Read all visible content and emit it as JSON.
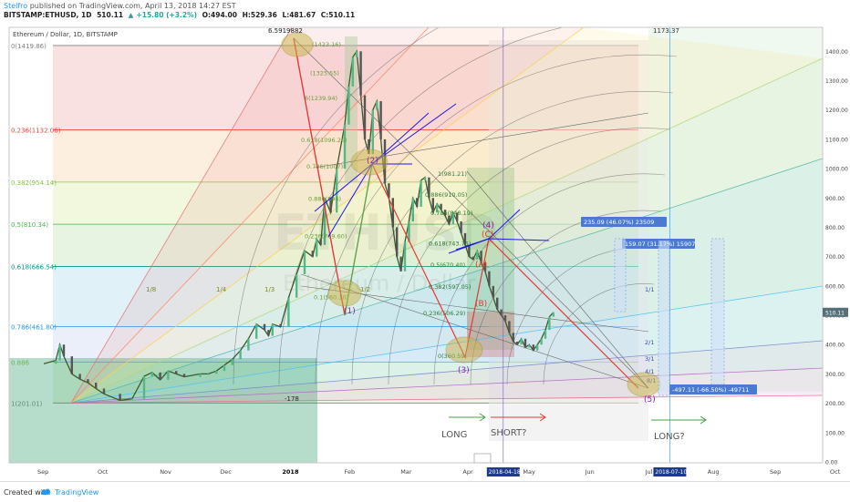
{
  "header": {
    "user": "Stelfro",
    "published": " published on TradingView.com, April 13, 2018 14:27 EST",
    "symbol": "BITSTAMP:ETHUSD, 1D",
    "last": "510.11",
    "change": "+15.80 (+3.2%)",
    "o": "O:494.00",
    "h": "H:529.36",
    "l": "L:481.67",
    "c": "C:510.11"
  },
  "chart_title": "Ethereum / Dollar, 1D, BITSTAMP",
  "watermark": {
    "big": "ETHUSD",
    "small": "Ethereum / Dollar"
  },
  "footer": {
    "created": "Created with",
    "brand": "TradingView"
  },
  "chart_data": {
    "type": "candlestick",
    "x_tick_labels": [
      "Sep",
      "Oct",
      "Nov",
      "Dec",
      "2018",
      "Feb",
      "Mar",
      "Apr",
      "May",
      "Jun",
      "Jul",
      "Aug",
      "Sep",
      "Oct"
    ],
    "y_tick_labels": [
      "1400.00",
      "1300.00",
      "1200.00",
      "1100.00",
      "1000.00",
      "900.00",
      "800.00",
      "700.00",
      "600.00",
      "500.00",
      "400.00",
      "300.00",
      "200.00",
      "100.00",
      "0.00"
    ],
    "ylim": [
      0,
      1460
    ],
    "last_price_label": "510.11",
    "date_marks": [
      {
        "label": "2018-04-18",
        "date": "2018-04-18"
      },
      {
        "label": "2018-07-10",
        "date": "2018-07-10"
      }
    ],
    "top_price_label": "1173.37",
    "price_series": [
      [
        0,
        335
      ],
      [
        6,
        346
      ],
      [
        8,
        400
      ],
      [
        10,
        360
      ],
      [
        14,
        300
      ],
      [
        18,
        282
      ],
      [
        22,
        270
      ],
      [
        26,
        250
      ],
      [
        30,
        232
      ],
      [
        38,
        210
      ],
      [
        44,
        215
      ],
      [
        50,
        292
      ],
      [
        54,
        305
      ],
      [
        58,
        280
      ],
      [
        62,
        310
      ],
      [
        66,
        300
      ],
      [
        70,
        290
      ],
      [
        78,
        300
      ],
      [
        82,
        300
      ],
      [
        86,
        310
      ],
      [
        90,
        330
      ],
      [
        94,
        350
      ],
      [
        98,
        380
      ],
      [
        102,
        420
      ],
      [
        106,
        470
      ],
      [
        110,
        450
      ],
      [
        112,
        430
      ],
      [
        114,
        470
      ],
      [
        118,
        460
      ],
      [
        122,
        560
      ],
      [
        126,
        640
      ],
      [
        130,
        720
      ],
      [
        134,
        700
      ],
      [
        136,
        760
      ],
      [
        138,
        740
      ],
      [
        140,
        900
      ],
      [
        143,
        850
      ],
      [
        146,
        1000
      ],
      [
        150,
        1150
      ],
      [
        152,
        1280
      ],
      [
        154,
        1380
      ],
      [
        156,
        1400
      ],
      [
        158,
        1250
      ],
      [
        160,
        1100
      ],
      [
        162,
        1050
      ],
      [
        164,
        1200
      ],
      [
        166,
        1230
      ],
      [
        168,
        1100
      ],
      [
        170,
        950
      ],
      [
        172,
        900
      ],
      [
        174,
        800
      ],
      [
        176,
        700
      ],
      [
        178,
        650
      ],
      [
        180,
        750
      ],
      [
        182,
        820
      ],
      [
        184,
        900
      ],
      [
        186,
        870
      ],
      [
        188,
        960
      ],
      [
        190,
        970
      ],
      [
        192,
        900
      ],
      [
        194,
        850
      ],
      [
        196,
        880
      ],
      [
        198,
        860
      ],
      [
        200,
        840
      ],
      [
        202,
        810
      ],
      [
        204,
        850
      ],
      [
        206,
        820
      ],
      [
        208,
        780
      ],
      [
        210,
        740
      ],
      [
        212,
        700
      ],
      [
        214,
        690
      ],
      [
        216,
        720
      ],
      [
        218,
        680
      ],
      [
        220,
        650
      ],
      [
        222,
        600
      ],
      [
        224,
        560
      ],
      [
        226,
        520
      ],
      [
        228,
        500
      ],
      [
        230,
        480
      ],
      [
        232,
        440
      ],
      [
        234,
        410
      ],
      [
        236,
        400
      ],
      [
        238,
        420
      ],
      [
        240,
        390
      ],
      [
        242,
        400
      ],
      [
        244,
        380
      ],
      [
        246,
        400
      ],
      [
        248,
        420
      ],
      [
        250,
        450
      ],
      [
        252,
        495
      ],
      [
        254,
        510
      ]
    ],
    "fib_retracement": [
      {
        "label": "0(1419.86)",
        "price": 1419.86,
        "color": "#808080"
      },
      {
        "label": "0.236(1132.06)",
        "price": 1132.06,
        "color": "#f44336"
      },
      {
        "label": "0.382(954.14)",
        "price": 954.14,
        "color": "#8bc34a"
      },
      {
        "label": "0.5(810.34)",
        "price": 810.34,
        "color": "#4caf50"
      },
      {
        "label": "0.618(666.54)",
        "price": 666.54,
        "color": "#009688"
      },
      {
        "label": "0.786(461.80)",
        "price": 461.8,
        "color": "#2196f3"
      },
      {
        "label": "0.886",
        "price": 340,
        "color": "#8bc34a"
      },
      {
        "label": "1(201.01)",
        "price": 201.01,
        "color": "#808080"
      }
    ],
    "inner_fib_labels": [
      {
        "label": "(1423.16)",
        "price": 1423.16
      },
      {
        "label": "(1325.55)",
        "price": 1325.55
      },
      {
        "label": "6(1239.94)",
        "price": 1239.94
      },
      {
        "label": "0.618(1096.26)",
        "price": 1096.26
      },
      {
        "label": "0.786(1007)",
        "price": 1007
      },
      {
        "label": "0.886(896)",
        "price": 896
      },
      {
        "label": "0.236(769.60)",
        "price": 769.6
      },
      {
        "label": "0.1(560.10)",
        "price": 560.1
      },
      {
        "label": "1(981.21)",
        "price": 981.21
      },
      {
        "label": "0.886(910.05)",
        "price": 910.05
      },
      {
        "label": "0.786(848.19)",
        "price": 848.19
      },
      {
        "label": "0.618(743.75)",
        "price": 743.75
      },
      {
        "label": "0.5(670.40)",
        "price": 670.4
      },
      {
        "label": "0.382(597.05)",
        "price": 597.05
      },
      {
        "label": "0.236(506.29)",
        "price": 506.29
      },
      {
        "label": "0(360.59)",
        "price": 360.59
      }
    ],
    "gann_fan_labels": [
      "1/8",
      "1/4",
      "1/3",
      "1/2"
    ],
    "gann_fan_right_labels": [
      "1/1",
      "2/1",
      "3/1",
      "4/1",
      "8/1"
    ],
    "annotations": {
      "high_value": "6.5919882",
      "minus178": "-178",
      "wave_labels": [
        "(1)",
        "(2)",
        "(3)",
        "(4)",
        "(5)",
        "(A)",
        "(B)",
        "(C)"
      ],
      "measurements": [
        "235.09 (46.07%) 23509",
        "159.07 (31.17%) 15907",
        "-497.11 (-66.50%) -49711"
      ],
      "trade_text": [
        "LONG",
        "SHORT?",
        "LONG?"
      ]
    }
  }
}
